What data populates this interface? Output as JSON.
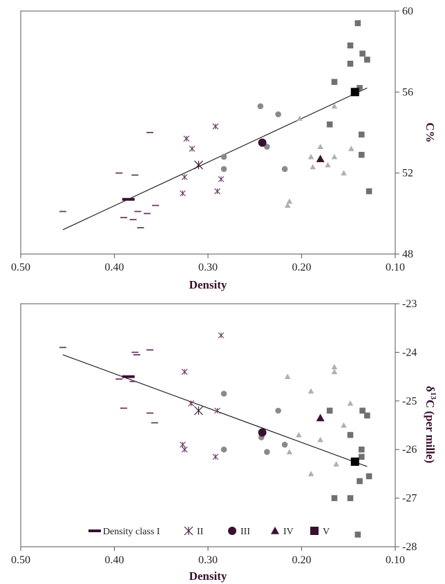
{
  "colors": {
    "class1": "#6a3a66",
    "class2": "#6a3a66",
    "class3": "#8a8a8a",
    "class4": "#b0b0b0",
    "class5": "#707070",
    "mean_dark": "#3a1030",
    "mean_black": "#000000",
    "axis": "#555555",
    "trend": "#222222",
    "text": "#3a1030"
  },
  "legend": [
    {
      "label": "Density class I",
      "marker": "dash"
    },
    {
      "label": "II",
      "marker": "asterisk"
    },
    {
      "label": "III",
      "marker": "circle"
    },
    {
      "label": "IV",
      "marker": "triangle"
    },
    {
      "label": "V",
      "marker": "square"
    }
  ],
  "chart_data": [
    {
      "type": "scatter",
      "title": "",
      "xlabel": "Density",
      "ylabel": "C%",
      "xlim": [
        0.5,
        0.1
      ],
      "x_reversed": true,
      "ylim": [
        48,
        60
      ],
      "xticks": [
        "0.50",
        "0.40",
        "0.30",
        "0.20",
        "0.10"
      ],
      "xtick_values": [
        0.5,
        0.4,
        0.3,
        0.2,
        0.1
      ],
      "yticks": [
        "48",
        "52",
        "56",
        "60"
      ],
      "ytick_values": [
        48,
        52,
        56,
        60
      ],
      "trendline": {
        "x1": 0.455,
        "y1": 49.2,
        "x2": 0.13,
        "y2": 56.2
      },
      "series": [
        {
          "name": "Density class I",
          "marker": "dash",
          "points": [
            [
              0.455,
              50.1
            ],
            [
              0.395,
              52.0
            ],
            [
              0.39,
              49.8
            ],
            [
              0.38,
              49.7
            ],
            [
              0.378,
              51.9
            ],
            [
              0.375,
              50.1
            ],
            [
              0.372,
              49.3
            ],
            [
              0.365,
              50.0
            ],
            [
              0.362,
              54.0
            ],
            [
              0.356,
              50.4
            ]
          ]
        },
        {
          "name": "II",
          "marker": "asterisk",
          "points": [
            [
              0.327,
              51.0
            ],
            [
              0.325,
              51.8
            ],
            [
              0.323,
              53.7
            ],
            [
              0.317,
              53.2
            ],
            [
              0.292,
              54.3
            ],
            [
              0.29,
              51.1
            ],
            [
              0.286,
              51.7
            ]
          ]
        },
        {
          "name": "III",
          "marker": "circle",
          "points": [
            [
              0.283,
              52.2
            ],
            [
              0.283,
              52.8
            ],
            [
              0.244,
              55.3
            ],
            [
              0.237,
              53.3
            ],
            [
              0.225,
              54.9
            ],
            [
              0.218,
              52.2
            ]
          ]
        },
        {
          "name": "IV",
          "marker": "triangle",
          "points": [
            [
              0.215,
              50.4
            ],
            [
              0.213,
              50.6
            ],
            [
              0.202,
              54.7
            ],
            [
              0.19,
              52.8
            ],
            [
              0.188,
              52.3
            ],
            [
              0.18,
              53.3
            ],
            [
              0.172,
              52.4
            ],
            [
              0.165,
              52.8
            ],
            [
              0.165,
              55.3
            ],
            [
              0.155,
              52.0
            ],
            [
              0.147,
              53.2
            ]
          ]
        },
        {
          "name": "V",
          "marker": "square",
          "points": [
            [
              0.17,
              54.4
            ],
            [
              0.165,
              56.5
            ],
            [
              0.148,
              57.4
            ],
            [
              0.148,
              58.3
            ],
            [
              0.14,
              59.4
            ],
            [
              0.138,
              56.2
            ],
            [
              0.136,
              52.9
            ],
            [
              0.136,
              53.9
            ],
            [
              0.135,
              57.9
            ],
            [
              0.13,
              57.6
            ],
            [
              0.128,
              51.1
            ]
          ]
        }
      ],
      "means": [
        {
          "name": "I",
          "marker": "dash",
          "x": 0.385,
          "y": 50.7
        },
        {
          "name": "II",
          "marker": "asterisk",
          "x": 0.31,
          "y": 52.4
        },
        {
          "name": "III",
          "marker": "circle",
          "x": 0.242,
          "y": 53.5
        },
        {
          "name": "IV",
          "marker": "triangle",
          "x": 0.18,
          "y": 52.7
        },
        {
          "name": "V",
          "marker": "square",
          "x": 0.143,
          "y": 56.0
        }
      ]
    },
    {
      "type": "scatter",
      "title": "",
      "xlabel": "Density",
      "ylabel": "δ13C (per mille)",
      "ylabel_parts": [
        "δ",
        "13",
        "C (per mille)"
      ],
      "xlim": [
        0.5,
        0.1
      ],
      "x_reversed": true,
      "ylim": [
        -28,
        -23
      ],
      "xticks": [
        "0.50",
        "0.40",
        "0.30",
        "0.20",
        "0.10"
      ],
      "xtick_values": [
        0.5,
        0.4,
        0.3,
        0.2,
        0.1
      ],
      "yticks": [
        "-28",
        "-27",
        "-26",
        "-25",
        "-24",
        "-23"
      ],
      "ytick_values": [
        -28,
        -27,
        -26,
        -25,
        -24,
        -23
      ],
      "trendline": {
        "x1": 0.455,
        "y1": -24.05,
        "x2": 0.13,
        "y2": -26.35
      },
      "series": [
        {
          "name": "Density class I",
          "marker": "dash",
          "points": [
            [
              0.455,
              -23.9
            ],
            [
              0.395,
              -24.55
            ],
            [
              0.39,
              -25.15
            ],
            [
              0.38,
              -24.6
            ],
            [
              0.378,
              -24.0
            ],
            [
              0.376,
              -24.05
            ],
            [
              0.362,
              -23.95
            ],
            [
              0.362,
              -25.25
            ],
            [
              0.357,
              -25.45
            ]
          ]
        },
        {
          "name": "II",
          "marker": "asterisk",
          "points": [
            [
              0.327,
              -25.9
            ],
            [
              0.325,
              -26.0
            ],
            [
              0.325,
              -24.4
            ],
            [
              0.318,
              -25.05
            ],
            [
              0.292,
              -26.15
            ],
            [
              0.29,
              -25.2
            ],
            [
              0.286,
              -23.65
            ]
          ]
        },
        {
          "name": "III",
          "marker": "circle",
          "points": [
            [
              0.283,
              -26.0
            ],
            [
              0.283,
              -24.85
            ],
            [
              0.243,
              -25.75
            ],
            [
              0.237,
              -26.05
            ],
            [
              0.225,
              -25.2
            ],
            [
              0.218,
              -25.9
            ]
          ]
        },
        {
          "name": "IV",
          "marker": "triangle",
          "points": [
            [
              0.215,
              -24.5
            ],
            [
              0.213,
              -26.05
            ],
            [
              0.203,
              -25.7
            ],
            [
              0.19,
              -24.8
            ],
            [
              0.19,
              -26.5
            ],
            [
              0.18,
              -25.8
            ],
            [
              0.165,
              -24.3
            ],
            [
              0.165,
              -24.4
            ],
            [
              0.163,
              -26.3
            ],
            [
              0.155,
              -25.5
            ],
            [
              0.148,
              -25.05
            ]
          ]
        },
        {
          "name": "V",
          "marker": "square",
          "points": [
            [
              0.17,
              -25.2
            ],
            [
              0.165,
              -27.0
            ],
            [
              0.148,
              -25.7
            ],
            [
              0.148,
              -27.0
            ],
            [
              0.14,
              -27.75
            ],
            [
              0.138,
              -26.65
            ],
            [
              0.136,
              -26.15
            ],
            [
              0.136,
              -26.0
            ],
            [
              0.135,
              -25.2
            ],
            [
              0.13,
              -25.3
            ],
            [
              0.128,
              -26.55
            ]
          ]
        }
      ],
      "means": [
        {
          "name": "I",
          "marker": "dash",
          "x": 0.385,
          "y": -24.5
        },
        {
          "name": "II",
          "marker": "asterisk",
          "x": 0.31,
          "y": -25.2
        },
        {
          "name": "III",
          "marker": "circle",
          "x": 0.242,
          "y": -25.65
        },
        {
          "name": "IV",
          "marker": "triangle",
          "x": 0.18,
          "y": -25.35
        },
        {
          "name": "V",
          "marker": "square",
          "x": 0.143,
          "y": -26.25
        }
      ]
    }
  ]
}
